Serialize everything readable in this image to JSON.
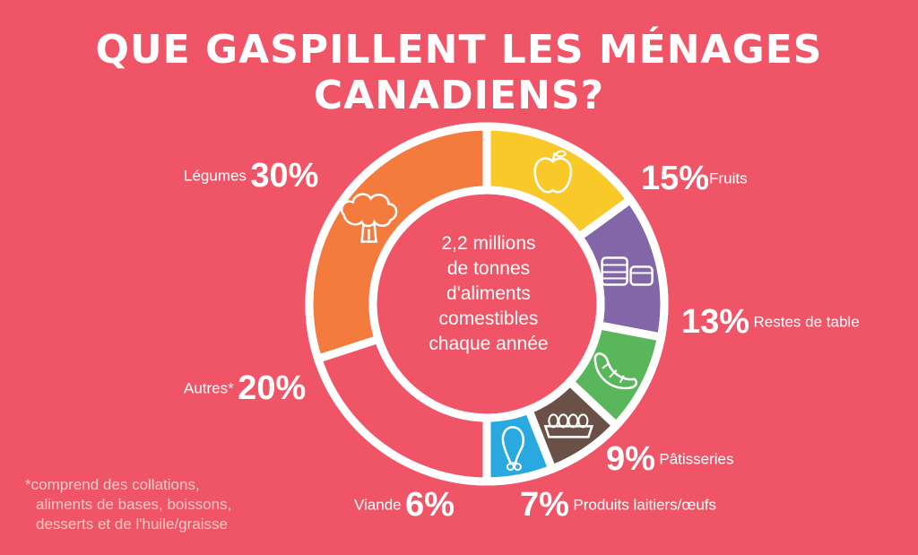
{
  "title": "QUE GASPILLENT LES MÉNAGES CANADIENS?",
  "center_text": [
    "2,2 millions",
    "de tonnes",
    "d'aliments",
    "comestibles",
    "chaque année"
  ],
  "footnote": [
    "*comprend des collations,",
    "aliments de bases, boissons,",
    "desserts et de l'huile/graisse"
  ],
  "colors": {
    "background": "#ef5566",
    "fruits": "#f9c929",
    "restes": "#8366a8",
    "patisseries": "#5ab65b",
    "produits": "#6b5047",
    "viande": "#29a9e0",
    "autres": "#ef5566",
    "legumes": "#f37b3d"
  },
  "chart_data": {
    "type": "pie",
    "title": "QUE GASPILLENT LES MÉNAGES CANADIENS?",
    "center_label": "2,2 millions de tonnes d'aliments comestibles chaque année",
    "slices": [
      {
        "key": "fruits",
        "label": "Fruits",
        "value": 15,
        "pct_text": "15%",
        "color": "#f9c929",
        "icon": "apple-icon"
      },
      {
        "key": "restes",
        "label": "Restes de table",
        "value": 13,
        "pct_text": "13%",
        "color": "#8366a8",
        "icon": "leftovers-containers-icon"
      },
      {
        "key": "patisseries",
        "label": "Pâtisseries",
        "value": 9,
        "pct_text": "9%",
        "color": "#5ab65b",
        "icon": "croissant-icon"
      },
      {
        "key": "produits",
        "label": "Produits laitiers/œufs",
        "value": 7,
        "pct_text": "7%",
        "color": "#6b5047",
        "icon": "egg-carton-icon"
      },
      {
        "key": "viande",
        "label": "Viande",
        "value": 6,
        "pct_text": "6%",
        "color": "#29a9e0",
        "icon": "drumstick-icon"
      },
      {
        "key": "autres",
        "label": "Autres*",
        "value": 20,
        "pct_text": "20%",
        "color": "#ef5566",
        "icon": ""
      },
      {
        "key": "legumes",
        "label": "Légumes",
        "value": 30,
        "pct_text": "30%",
        "color": "#f37b3d",
        "icon": "broccoli-icon"
      }
    ]
  }
}
